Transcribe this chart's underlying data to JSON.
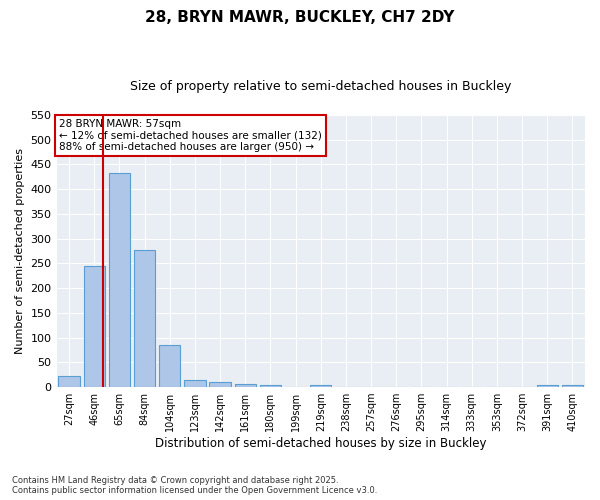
{
  "title1": "28, BRYN MAWR, BUCKLEY, CH7 2DY",
  "title2": "Size of property relative to semi-detached houses in Buckley",
  "xlabel": "Distribution of semi-detached houses by size in Buckley",
  "ylabel": "Number of semi-detached properties",
  "footnote": "Contains HM Land Registry data © Crown copyright and database right 2025.\nContains public sector information licensed under the Open Government Licence v3.0.",
  "bins": [
    "27sqm",
    "46sqm",
    "65sqm",
    "84sqm",
    "104sqm",
    "123sqm",
    "142sqm",
    "161sqm",
    "180sqm",
    "199sqm",
    "219sqm",
    "238sqm",
    "257sqm",
    "276sqm",
    "295sqm",
    "314sqm",
    "333sqm",
    "353sqm",
    "372sqm",
    "391sqm",
    "410sqm"
  ],
  "bar_values": [
    22,
    244,
    432,
    277,
    85,
    14,
    10,
    7,
    4,
    0,
    4,
    0,
    0,
    0,
    0,
    0,
    0,
    0,
    0,
    4,
    4
  ],
  "bar_color": "#aec6e8",
  "bar_edge_color": "#5a9fd4",
  "vline_x": 1.35,
  "vline_color": "#cc0000",
  "annotation_text": "28 BRYN MAWR: 57sqm\n← 12% of semi-detached houses are smaller (132)\n88% of semi-detached houses are larger (950) →",
  "annotation_box_color": "#cc0000",
  "ylim": [
    0,
    550
  ],
  "yticks": [
    0,
    50,
    100,
    150,
    200,
    250,
    300,
    350,
    400,
    450,
    500,
    550
  ],
  "bg_color": "#e8eef4",
  "grid_color": "#ffffff",
  "title1_fontsize": 11,
  "title2_fontsize": 9
}
